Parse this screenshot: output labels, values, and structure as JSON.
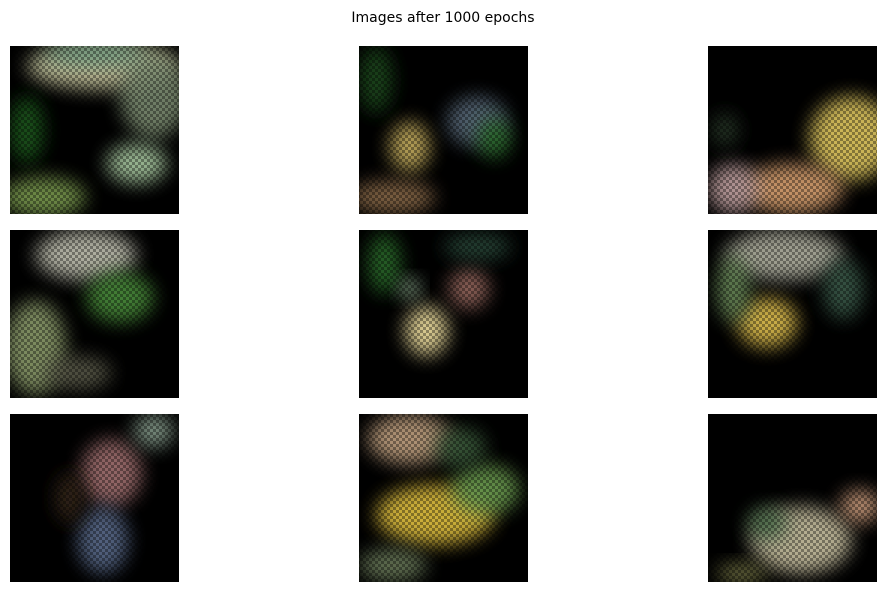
{
  "title": "Images after 1000 epochs"
}
